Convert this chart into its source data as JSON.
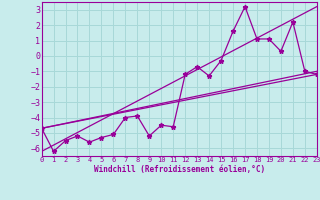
{
  "xlabel": "Windchill (Refroidissement éolien,°C)",
  "bg_color": "#c8ecec",
  "grid_color": "#a8d8d8",
  "line_color": "#990099",
  "xlim": [
    0,
    23
  ],
  "ylim": [
    -6.5,
    3.5
  ],
  "yticks": [
    3,
    2,
    1,
    0,
    -1,
    -2,
    -3,
    -4,
    -5,
    -6
  ],
  "xticks": [
    0,
    1,
    2,
    3,
    4,
    5,
    6,
    7,
    8,
    9,
    10,
    11,
    12,
    13,
    14,
    15,
    16,
    17,
    18,
    19,
    20,
    21,
    22,
    23
  ],
  "series1_x": [
    0,
    1,
    2,
    3,
    4,
    5,
    6,
    7,
    8,
    9,
    10,
    11,
    12,
    13,
    14,
    15,
    16,
    17,
    18,
    19,
    20,
    21,
    22,
    23
  ],
  "series1_y": [
    -4.7,
    -6.2,
    -5.5,
    -5.2,
    -5.6,
    -5.3,
    -5.1,
    -4.0,
    -3.9,
    -5.2,
    -4.5,
    -4.6,
    -1.2,
    -0.7,
    -1.3,
    -0.3,
    1.6,
    3.2,
    1.1,
    1.1,
    0.3,
    2.2,
    -1.0,
    -1.2
  ],
  "line1_x": [
    0,
    23
  ],
  "line1_y": [
    -4.7,
    -1.2
  ],
  "line2_x": [
    0,
    23
  ],
  "line2_y": [
    -4.7,
    -1.0
  ],
  "line3_x": [
    0,
    23
  ],
  "line3_y": [
    -6.2,
    3.2
  ]
}
